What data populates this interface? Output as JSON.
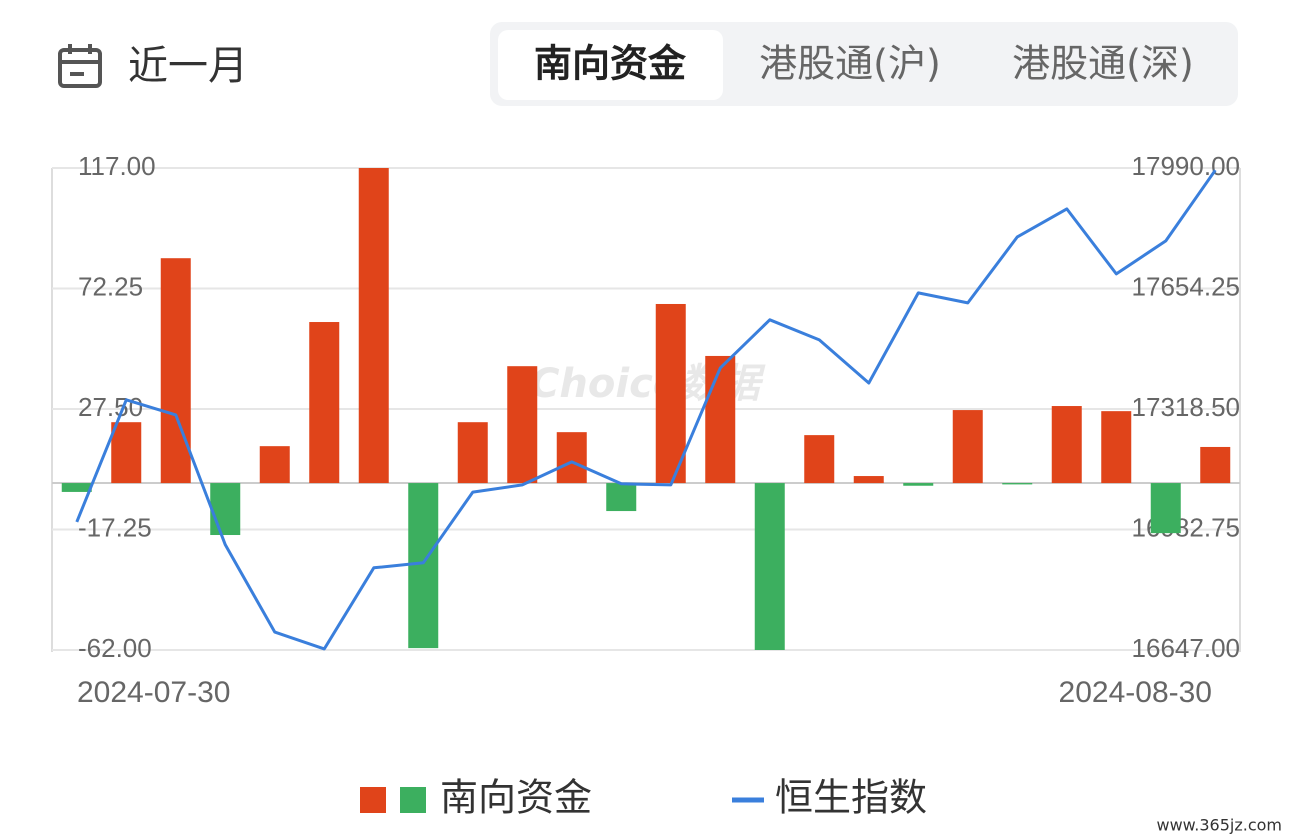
{
  "header": {
    "period": "近一月",
    "tabs": [
      "南向资金",
      "港股通(沪)",
      "港股通(深)"
    ]
  },
  "chart_data": {
    "type": "combo",
    "categories": [
      "2024-07-30",
      null,
      null,
      null,
      null,
      null,
      null,
      null,
      null,
      null,
      null,
      null,
      null,
      null,
      null,
      null,
      null,
      null,
      null,
      null,
      null,
      null,
      null,
      "2024-08-30"
    ],
    "series": [
      {
        "name": "南向资金",
        "type": "bar",
        "color": "#e0441a",
        "negative_color": "#3caf5f",
        "values": [
          -3.3,
          22.6,
          83.5,
          -19.3,
          13.7,
          59.8,
          117,
          -61.3,
          22.6,
          43.4,
          18.9,
          -10.4,
          66.5,
          47.2,
          -62,
          17.8,
          2.6,
          -1,
          27.1,
          -0.5,
          28.6,
          26.7,
          -18.6,
          13.4
        ]
      },
      {
        "name": "恒生指数",
        "type": "line",
        "axis": "y2",
        "color": "#3a7fdc",
        "values": [
          17004,
          17344,
          17302,
          16940,
          16697,
          16650,
          16876,
          16890,
          17087,
          17107,
          17171,
          17110,
          17107,
          17433,
          17567,
          17511,
          17391,
          17642,
          17614,
          17798,
          17876,
          17695,
          17787,
          17984
        ]
      }
    ],
    "ylim": [
      -62,
      117
    ],
    "yticks": [
      {
        "value": -62,
        "label": "-62.00"
      },
      -17.25,
      {
        "value": 27.5,
        "label": "27.50"
      },
      72.25,
      {
        "value": 117,
        "label": "117.00"
      }
    ],
    "y2lim": [
      16647,
      17990
    ],
    "y2ticks": [
      {
        "value": 16647,
        "label": "16647.00"
      },
      16982.75,
      {
        "value": 17318.5,
        "label": "17318.50"
      },
      17654.25,
      {
        "value": 17990,
        "label": "17990.00"
      }
    ],
    "grid": true,
    "watermark": "Choice数据"
  },
  "footer": {
    "site": "www.365jz.com"
  }
}
